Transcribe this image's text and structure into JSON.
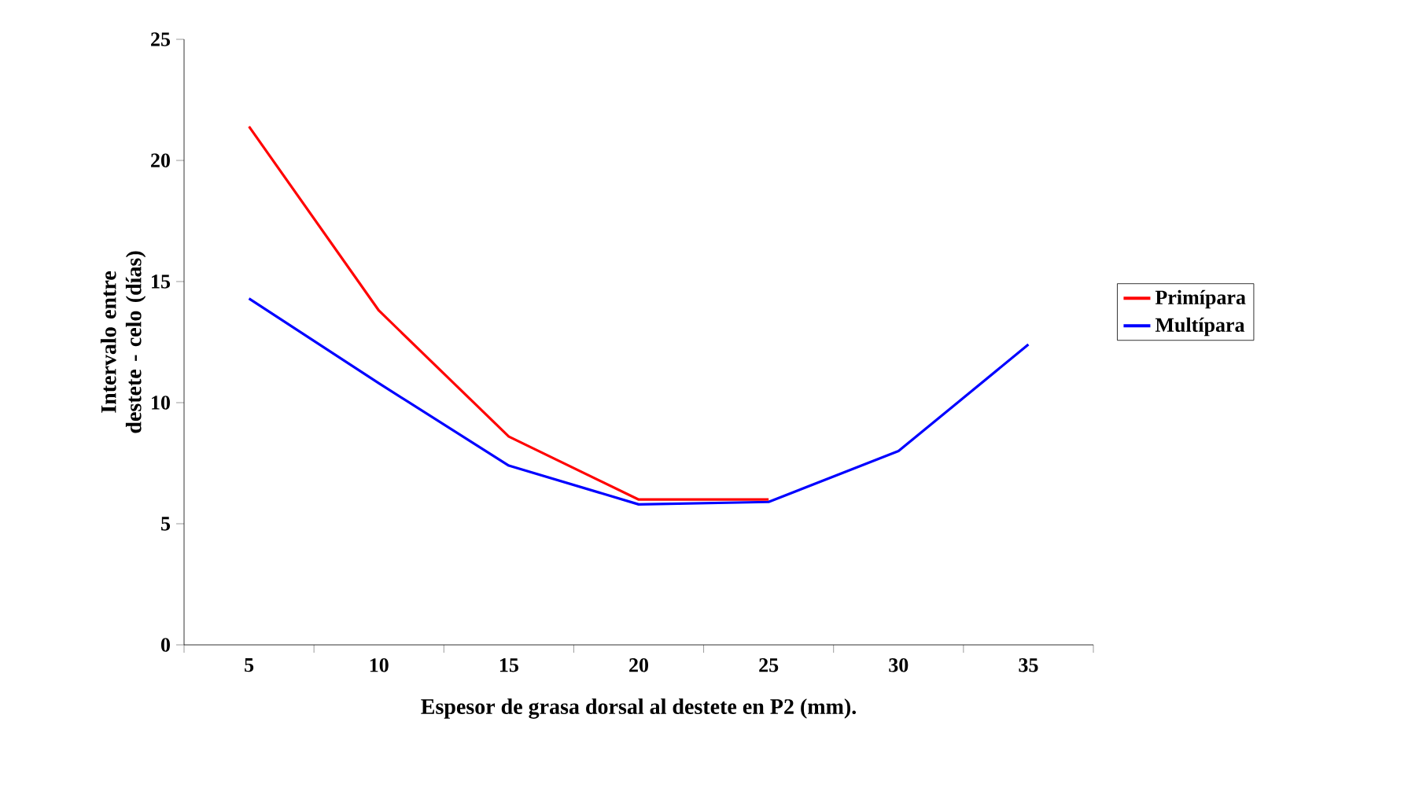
{
  "chart_data": {
    "type": "line",
    "xlabel": "Espesor de grasa dorsal al destete en P2 (mm).",
    "ylabel": "Intervalo entre destete - celo (días)",
    "categories": [
      "5",
      "10",
      "15",
      "20",
      "25",
      "30",
      "35"
    ],
    "series": [
      {
        "name": "Primípara",
        "color": "#ff0000",
        "values": [
          21.4,
          13.8,
          8.6,
          6.0,
          6.0,
          null,
          null
        ]
      },
      {
        "name": "Multípara",
        "color": "#0000ff",
        "values": [
          14.3,
          10.8,
          7.4,
          5.8,
          5.9,
          8.0,
          12.4
        ]
      }
    ],
    "ylim": [
      0,
      25
    ],
    "yticks": [
      0,
      5,
      10,
      15,
      20,
      25
    ],
    "grid": false,
    "legend": "right",
    "marker": "none",
    "line_style": "solid"
  }
}
